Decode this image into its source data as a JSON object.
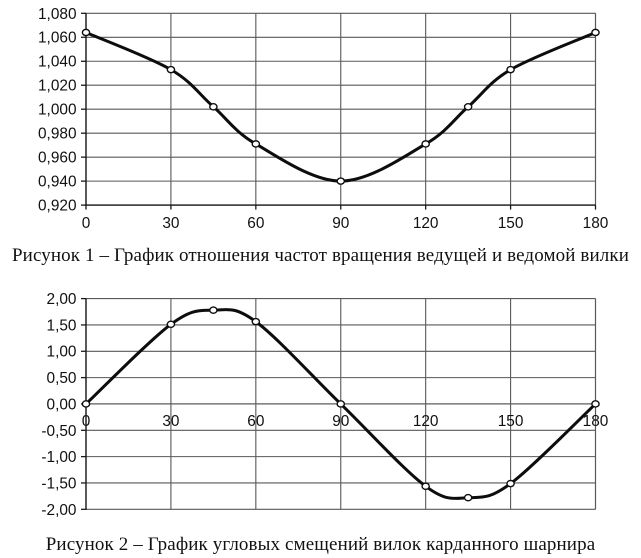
{
  "page": {
    "background_color": "#ffffff",
    "figures": [
      "figure-1",
      "figure-2"
    ]
  },
  "colors": {
    "grid": "#585858",
    "frame": "#585858",
    "axis": "#1a1a1a",
    "curve": "#0d0d0d",
    "marker_fill": "#ffffff",
    "marker_stroke": "#0d0d0d",
    "text": "#111111"
  },
  "chart_data": [
    {
      "type": "line",
      "title": "",
      "caption": "Рисунок 1 – График отношения частот вращения ведущей и ведомой вилки",
      "x": [
        0,
        30,
        45,
        60,
        90,
        120,
        135,
        150,
        180
      ],
      "values": [
        1.064,
        1.033,
        1.002,
        0.971,
        0.94,
        0.971,
        1.002,
        1.033,
        1.064
      ],
      "xlim": [
        0,
        180
      ],
      "ylim": [
        0.92,
        1.08
      ],
      "x_ticks": [
        0,
        30,
        60,
        90,
        120,
        150,
        180
      ],
      "x_tick_labels": [
        "0",
        "30",
        "60",
        "90",
        "120",
        "150",
        "180"
      ],
      "y_ticks": [
        1.08,
        1.06,
        1.04,
        1.02,
        1.0,
        0.98,
        0.96,
        0.94,
        0.92
      ],
      "y_tick_labels": [
        "1,080",
        "1,060",
        "1,040",
        "1,020",
        "1,000",
        "0,980",
        "0,960",
        "0,940",
        "0,920"
      ],
      "grid": true,
      "legend": "none",
      "marker": "circle",
      "smooth": true,
      "x_axis_position": "bottom"
    },
    {
      "type": "line",
      "title": "",
      "caption": "Рисунок 2 – График угловых смещений вилок карданного шарнира",
      "x": [
        0,
        30,
        45,
        60,
        90,
        120,
        135,
        150,
        180
      ],
      "values": [
        0.0,
        1.512,
        1.78,
        1.563,
        0.0,
        -1.563,
        -1.78,
        -1.512,
        0.0
      ],
      "xlim": [
        0,
        180
      ],
      "ylim": [
        -2.0,
        2.0
      ],
      "x_ticks": [
        0,
        30,
        60,
        90,
        120,
        150,
        180
      ],
      "x_tick_labels": [
        "0",
        "30",
        "60",
        "90",
        "120",
        "150",
        "180"
      ],
      "y_ticks": [
        2.0,
        1.5,
        1.0,
        0.5,
        0.0,
        -0.5,
        -1.0,
        -1.5,
        -2.0
      ],
      "y_tick_labels": [
        "2,00",
        "1,50",
        "1,00",
        "0,50",
        "0,00",
        "-0,50",
        "-1,00",
        "-1,50",
        "-2,00"
      ],
      "grid": true,
      "legend": "none",
      "marker": "circle",
      "smooth": true,
      "x_axis_position": "zero"
    }
  ]
}
